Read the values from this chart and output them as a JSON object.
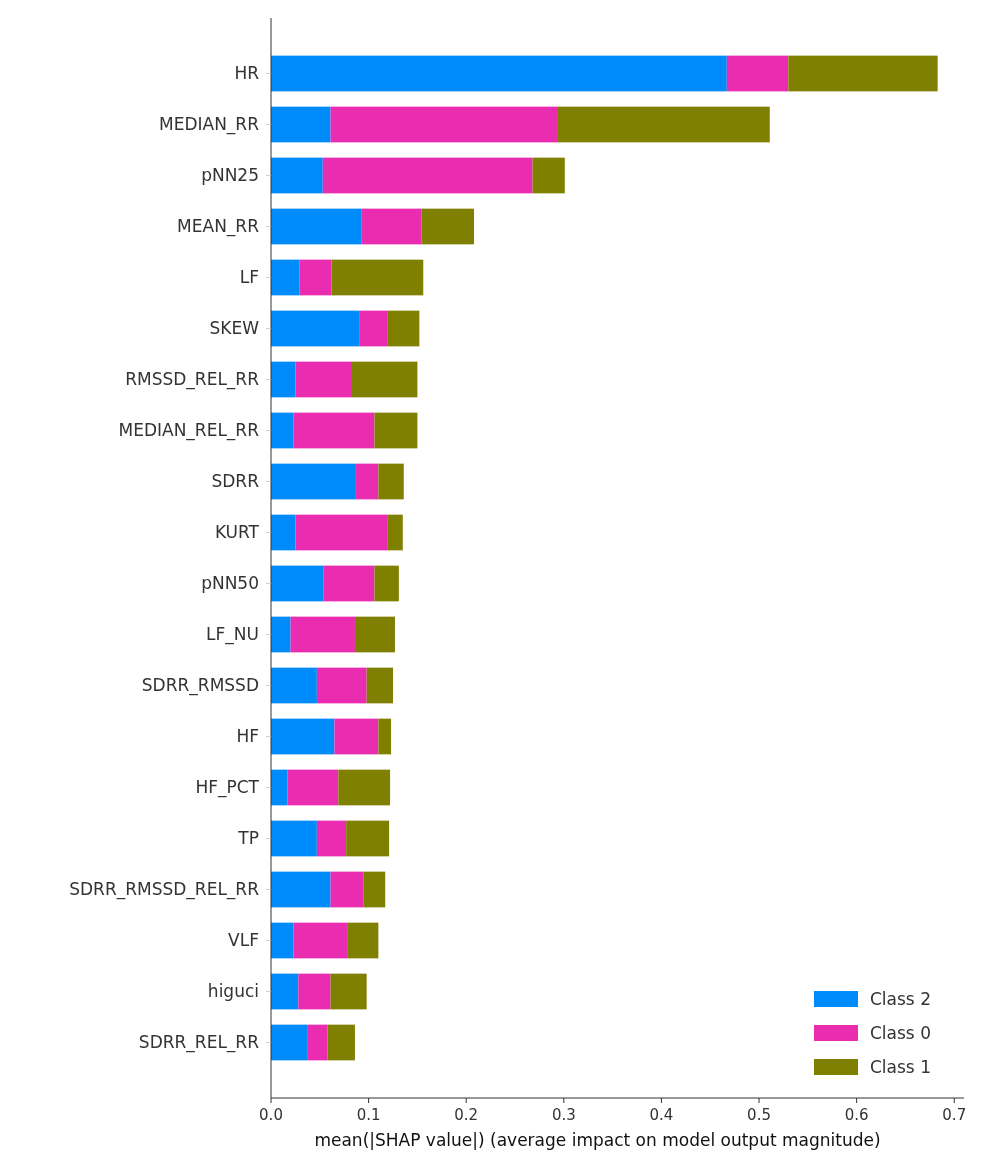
{
  "chart_data": {
    "type": "bar",
    "orientation": "horizontal",
    "stacked": true,
    "xlabel": "mean(|SHAP value|) (average impact on model output magnitude)",
    "categories": [
      "HR",
      "MEDIAN_RR",
      "pNN25",
      "MEAN_RR",
      "LF",
      "SKEW",
      "RMSSD_REL_RR",
      "MEDIAN_REL_RR",
      "SDRR",
      "KURT",
      "pNN50",
      "LF_NU",
      "SDRR_RMSSD",
      "HF",
      "HF_PCT",
      "TP",
      "SDRR_RMSSD_REL_RR",
      "VLF",
      "higuci",
      "SDRR_REL_RR"
    ],
    "series": [
      {
        "name": "Class 2",
        "color": "#008bfb",
        "values": [
          0.467,
          0.061,
          0.053,
          0.093,
          0.029,
          0.091,
          0.025,
          0.023,
          0.087,
          0.025,
          0.054,
          0.02,
          0.047,
          0.065,
          0.017,
          0.047,
          0.061,
          0.023,
          0.028,
          0.037
        ]
      },
      {
        "name": "Class 0",
        "color": "#e92cb0",
        "values": [
          0.063,
          0.233,
          0.215,
          0.061,
          0.033,
          0.028,
          0.057,
          0.083,
          0.023,
          0.094,
          0.052,
          0.066,
          0.051,
          0.045,
          0.052,
          0.03,
          0.034,
          0.055,
          0.033,
          0.021
        ]
      },
      {
        "name": "Class 1",
        "color": "#808000",
        "values": [
          0.153,
          0.217,
          0.033,
          0.054,
          0.094,
          0.033,
          0.068,
          0.044,
          0.026,
          0.016,
          0.025,
          0.041,
          0.027,
          0.013,
          0.053,
          0.044,
          0.022,
          0.032,
          0.037,
          0.028
        ]
      }
    ],
    "xlim": [
      0,
      0.71
    ],
    "xticks": [
      {
        "value": 0,
        "label": "0.0"
      },
      {
        "value": 0.1,
        "label": "0.1"
      },
      {
        "value": 0.2,
        "label": "0.2"
      },
      {
        "value": 0.3,
        "label": "0.3"
      },
      {
        "value": 0.4,
        "label": "0.4"
      },
      {
        "value": 0.5,
        "label": "0.5"
      },
      {
        "value": 0.6,
        "label": "0.6"
      },
      {
        "value": 0.7,
        "label": "0.7"
      }
    ],
    "legend": "bottom right",
    "grid": false
  }
}
